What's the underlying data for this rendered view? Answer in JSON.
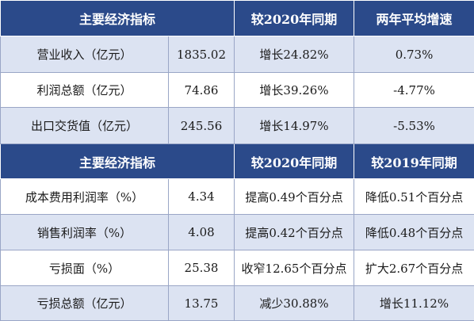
{
  "section1": {
    "headers": [
      "主要经济指标",
      "较2020年同期",
      "两年平均增速"
    ],
    "rows": [
      {
        "indicator": "营业收入（亿元）",
        "value": "1835.02",
        "yoy": "增长24.82%",
        "other": "0.73%"
      },
      {
        "indicator": "利润总额（亿元）",
        "value": "74.86",
        "yoy": "增长39.26%",
        "other": "-4.77%"
      },
      {
        "indicator": "出口交货值（亿元）",
        "value": "245.56",
        "yoy": "增长14.97%",
        "other": "-5.53%"
      }
    ]
  },
  "section2": {
    "headers": [
      "主要经济指标",
      "较2020年同期",
      "较2019年同期"
    ],
    "rows": [
      {
        "indicator": "成本费用利润率（%）",
        "value": "4.34",
        "yoy": "提高0.49个百分点",
        "other": "降低0.51个百分点"
      },
      {
        "indicator": "销售利润率（%）",
        "value": "4.08",
        "yoy": "提高0.42个百分点",
        "other": "降低0.48个百分点"
      },
      {
        "indicator": "亏损面（%）",
        "value": "25.38",
        "yoy": "收窄12.65个百分点",
        "other": "扩大2.67个百分点"
      },
      {
        "indicator": "亏损总额（亿元）",
        "value": "13.75",
        "yoy": "减少30.88%",
        "other": "增长11.12%"
      }
    ]
  }
}
